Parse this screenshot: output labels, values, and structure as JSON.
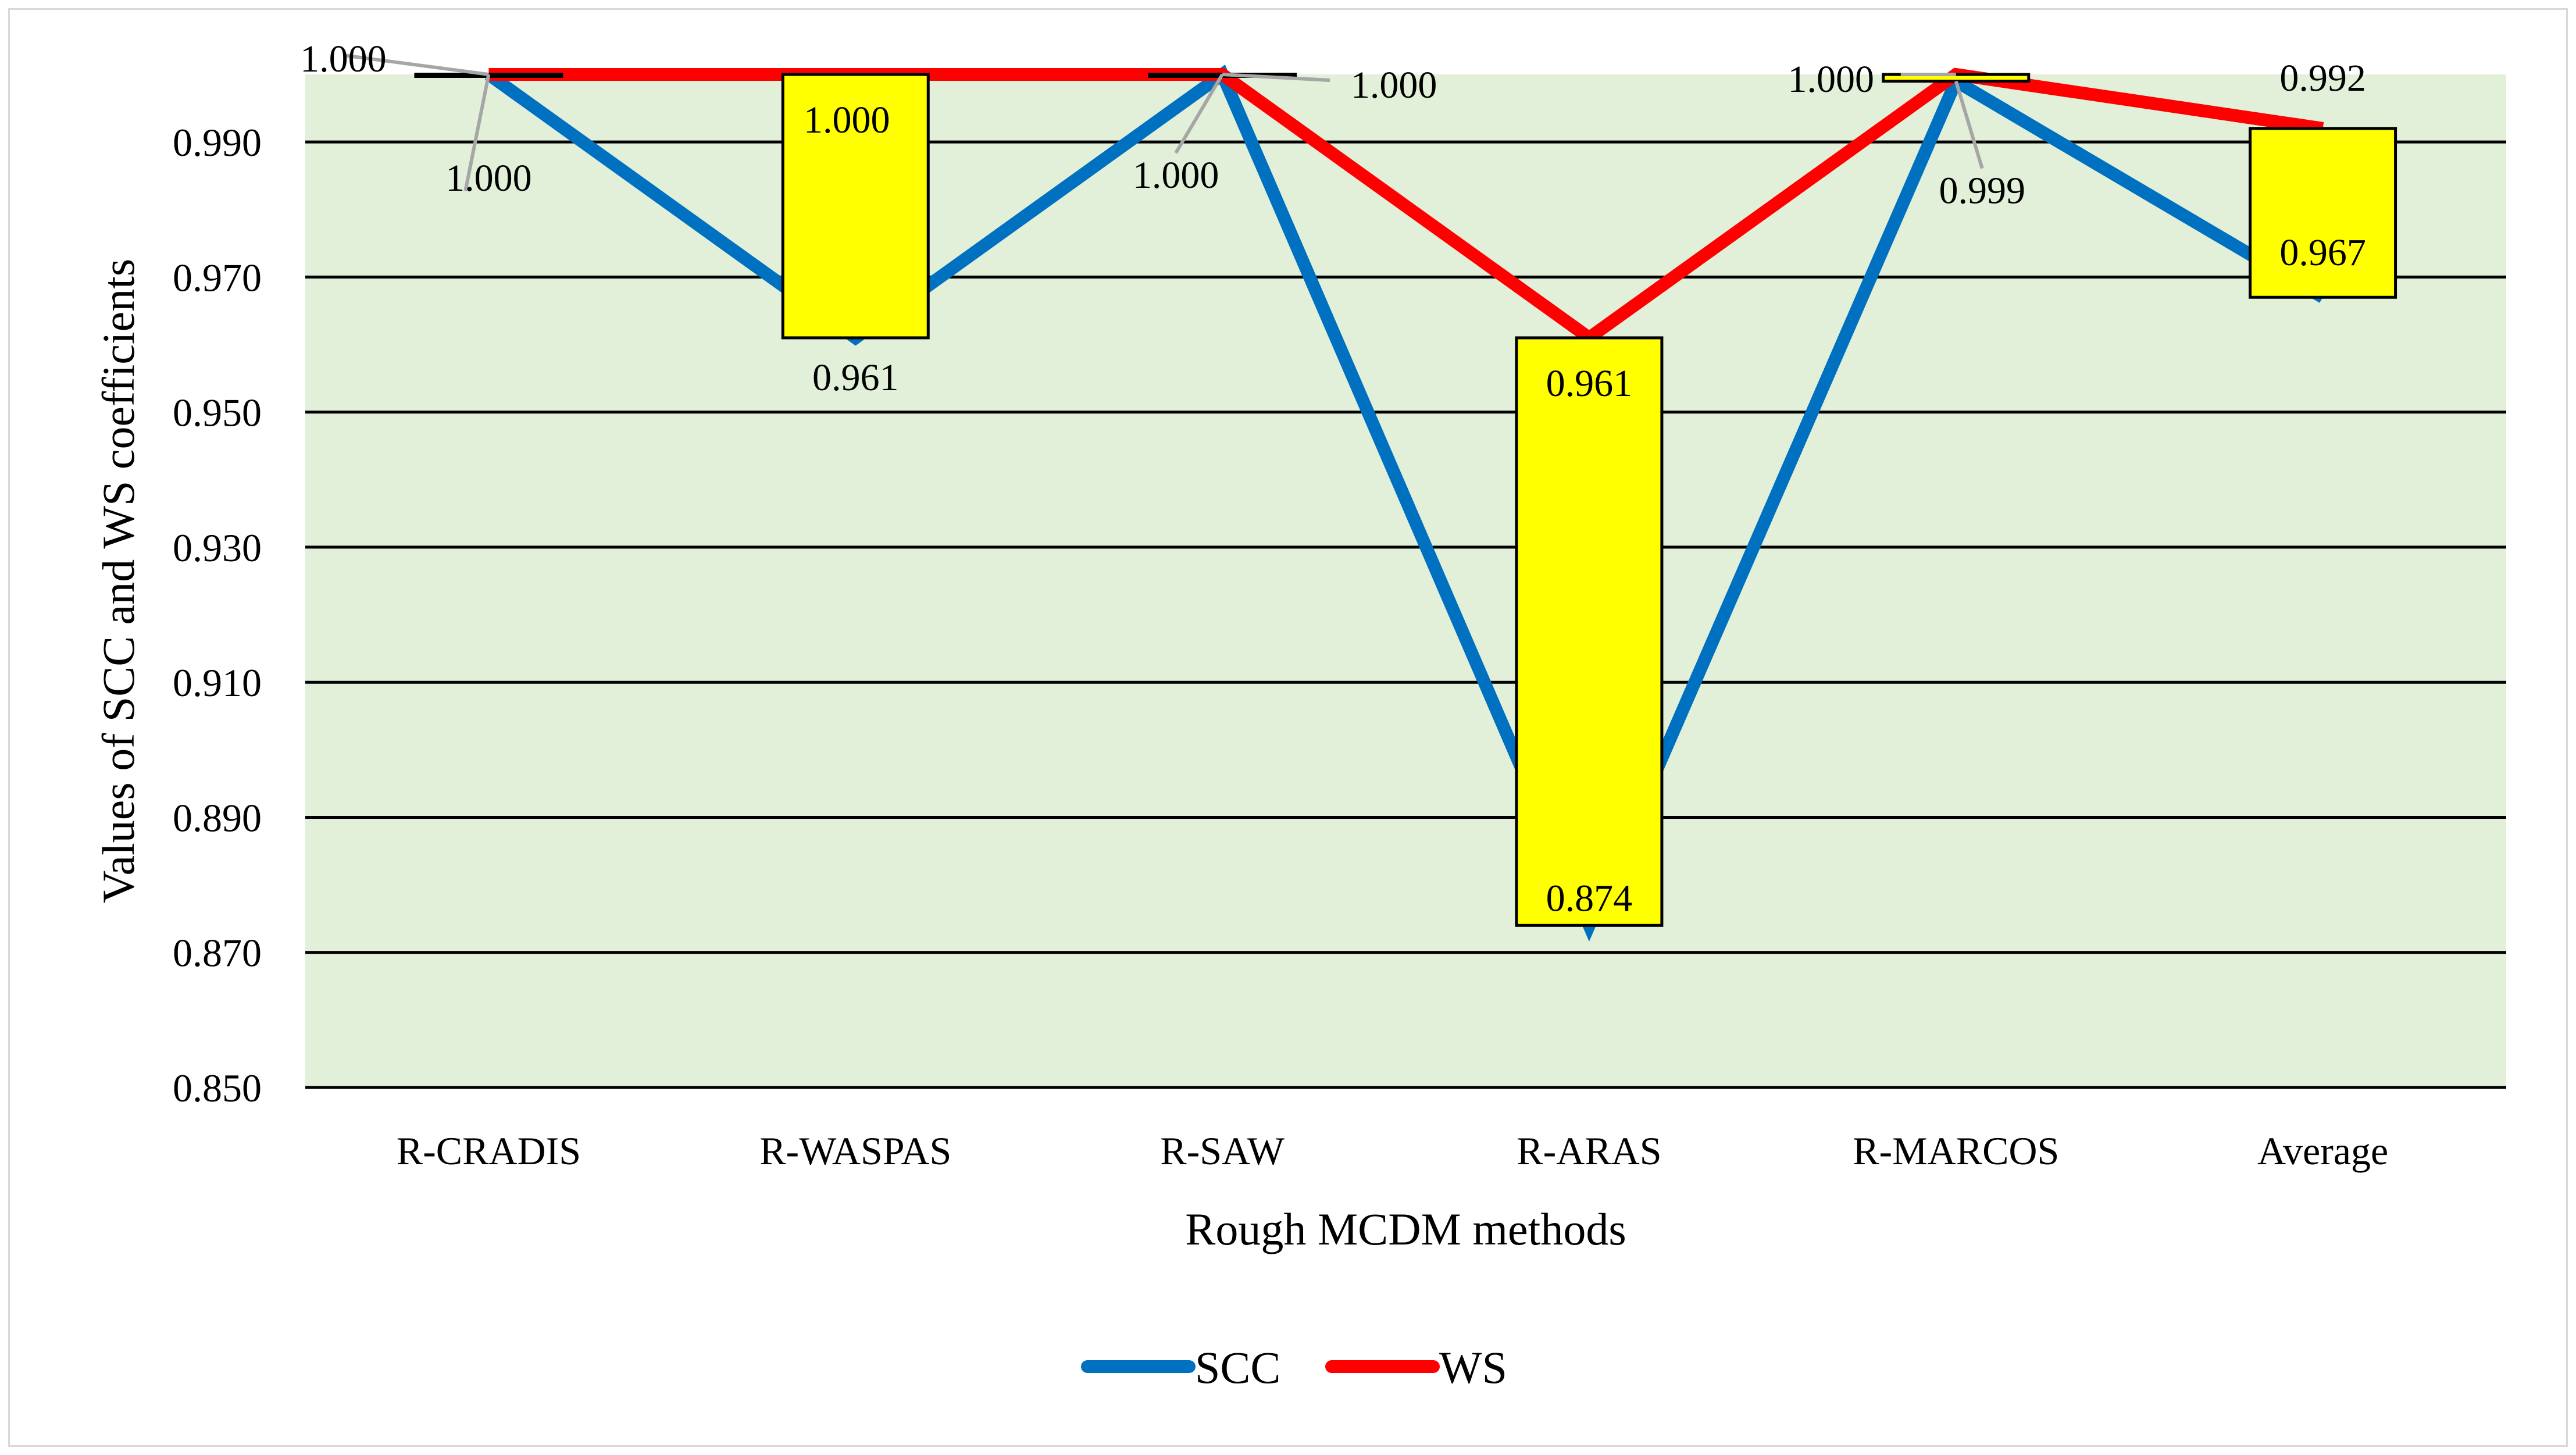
{
  "chart_data": {
    "type": "line",
    "xlabel": "Rough MCDM methods",
    "ylabel": "Values of SCC and WS coefficients",
    "ylim": [
      0.85,
      1.0
    ],
    "yticks": [
      0.85,
      0.87,
      0.89,
      0.91,
      0.93,
      0.95,
      0.97,
      0.99
    ],
    "ytick_labels": [
      "0.850",
      "0.870",
      "0.890",
      "0.910",
      "0.930",
      "0.950",
      "0.970",
      "0.990"
    ],
    "grid": true,
    "legend_position": "bottom",
    "categories": [
      "R-CRADIS",
      "R-WASPAS",
      "R-SAW",
      "R-ARAS",
      "R-MARCOS",
      "Average"
    ],
    "series": [
      {
        "name": "SCC",
        "color": "#0070c0",
        "values": [
          1.0,
          0.961,
          1.0,
          0.874,
          0.999,
          0.967
        ],
        "labels": [
          "1.000",
          "0.961",
          "1.000",
          "0.874",
          "0.999",
          "0.967"
        ]
      },
      {
        "name": "WS",
        "color": "#ff0000",
        "values": [
          1.0,
          1.0,
          1.0,
          0.961,
          1.0,
          0.992
        ],
        "labels": [
          "1.000",
          "1.000",
          "1.000",
          "0.961",
          "1.000",
          "0.992"
        ]
      }
    ],
    "updown_bars": {
      "fill": "#ffff00",
      "stroke": "#000000"
    },
    "plot_background": "#e2efd9"
  }
}
